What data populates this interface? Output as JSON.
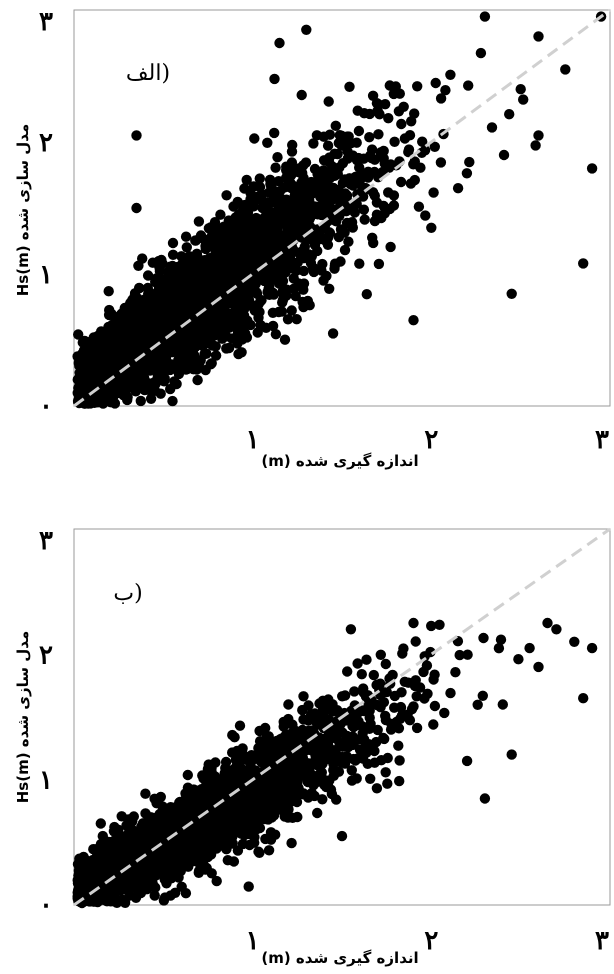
{
  "chart_data": [
    {
      "type": "scatter",
      "panel_label": "الف)",
      "xlabel": "اندازه گیری شده (m)",
      "ylabel": "مدل سازی شده Hs(m)",
      "x_ticks": [
        "١",
        "٢",
        "٣"
      ],
      "y_ticks": [
        "٠",
        "١",
        "٢",
        "٣"
      ],
      "x_tick_values": [
        1,
        2,
        3
      ],
      "y_tick_values": [
        0,
        1,
        2,
        3
      ],
      "xlim": [
        0,
        3
      ],
      "ylim": [
        0,
        3
      ],
      "grid": false,
      "reference_line": {
        "x": [
          0,
          3
        ],
        "y": [
          0,
          3
        ],
        "style": "dashed",
        "color": "#d0d0d0"
      },
      "point_color": "#000000",
      "cloud": {
        "n": 2600,
        "seed": 11,
        "mean_x": 0.85,
        "sd_x": 0.6,
        "slope": 1.0,
        "intercept": 0.12,
        "noise": 0.3
      },
      "points": [
        {
          "x": 2.85,
          "y": 1.08
        },
        {
          "x": 3.0,
          "y": 1.3
        },
        {
          "x": 2.45,
          "y": 0.85
        },
        {
          "x": 2.9,
          "y": 1.8
        },
        {
          "x": 2.15,
          "y": 1.65
        },
        {
          "x": 0.35,
          "y": 2.05
        },
        {
          "x": 0.35,
          "y": 1.5
        },
        {
          "x": 1.15,
          "y": 2.75
        },
        {
          "x": 1.3,
          "y": 2.85
        },
        {
          "x": 1.9,
          "y": 0.65
        },
        {
          "x": 2.6,
          "y": 2.8
        },
        {
          "x": 2.95,
          "y": 2.95
        },
        {
          "x": 2.75,
          "y": 2.55
        },
        {
          "x": 2.6,
          "y": 2.05
        },
        {
          "x": 2.0,
          "y": 1.35
        },
        {
          "x": 1.45,
          "y": 0.55
        },
        {
          "x": 2.3,
          "y": 2.95
        },
        {
          "x": 2.5,
          "y": 2.4
        }
      ]
    },
    {
      "type": "scatter",
      "panel_label": "ب)",
      "xlabel": "اندازه گیری شده (m)",
      "ylabel": "مدل سازی شده Hs(m)",
      "x_ticks": [
        "١",
        "٢",
        "٣"
      ],
      "y_ticks": [
        "٠",
        "١",
        "٢",
        "٣"
      ],
      "x_tick_values": [
        1,
        2,
        3
      ],
      "y_tick_values": [
        0,
        1,
        2,
        3
      ],
      "xlim": [
        0,
        3
      ],
      "ylim": [
        0,
        3
      ],
      "grid": false,
      "reference_line": {
        "x": [
          0,
          3
        ],
        "y": [
          0,
          3
        ],
        "style": "dashed",
        "color": "#d0d0d0"
      },
      "point_color": "#000000",
      "cloud": {
        "n": 2600,
        "seed": 23,
        "mean_x": 0.85,
        "sd_x": 0.6,
        "slope": 0.82,
        "intercept": 0.08,
        "noise": 0.22
      },
      "points": [
        {
          "x": 2.9,
          "y": 2.05
        },
        {
          "x": 2.8,
          "y": 2.1
        },
        {
          "x": 2.7,
          "y": 2.2
        },
        {
          "x": 2.85,
          "y": 1.65
        },
        {
          "x": 2.45,
          "y": 1.2
        },
        {
          "x": 2.3,
          "y": 0.85
        },
        {
          "x": 2.55,
          "y": 2.05
        },
        {
          "x": 2.65,
          "y": 2.25
        },
        {
          "x": 2.4,
          "y": 1.6
        },
        {
          "x": 1.55,
          "y": 2.2
        },
        {
          "x": 1.9,
          "y": 2.25
        },
        {
          "x": 1.75,
          "y": 1.7
        },
        {
          "x": 1.2,
          "y": 1.6
        },
        {
          "x": 0.15,
          "y": 0.65
        },
        {
          "x": 2.2,
          "y": 1.15
        },
        {
          "x": 1.5,
          "y": 0.55
        },
        {
          "x": 2.6,
          "y": 1.9
        }
      ]
    }
  ]
}
